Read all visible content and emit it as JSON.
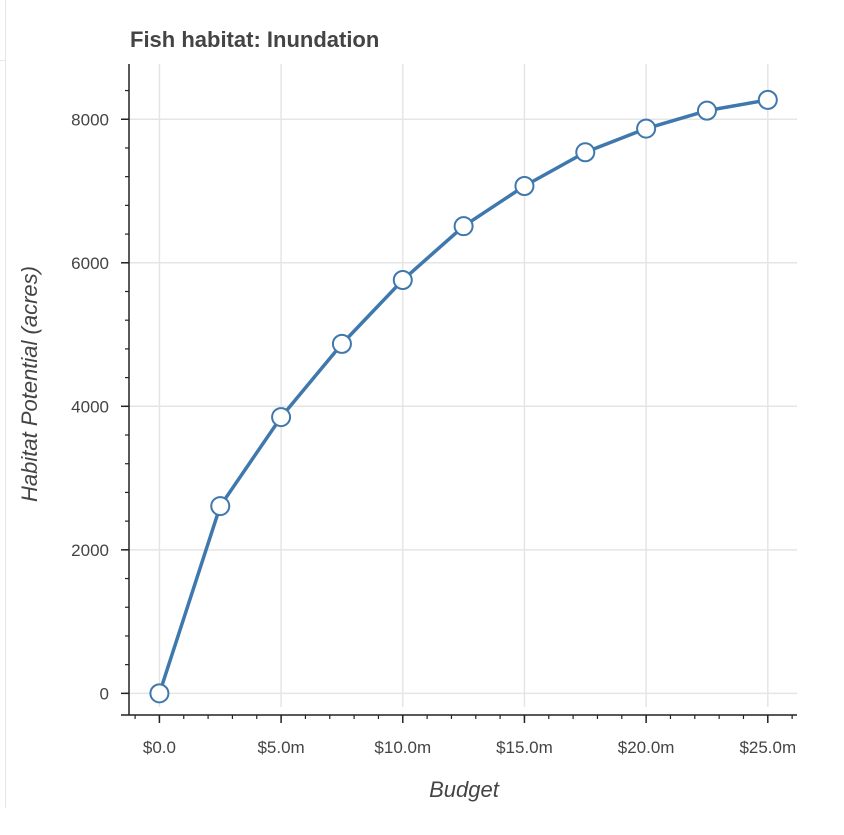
{
  "chart_data": {
    "type": "line",
    "title": "Fish habitat: Inundation",
    "xlabel": "Budget",
    "ylabel": "Habitat Potential (acres)",
    "x": [
      0,
      2.5,
      5,
      7.5,
      10,
      12.5,
      15,
      17.5,
      20,
      22.5,
      25
    ],
    "series": [
      {
        "values": [
          0,
          2610,
          3850,
          4870,
          5760,
          6510,
          7070,
          7540,
          7870,
          8120,
          8270
        ]
      }
    ],
    "xlim": [
      -1.25,
      26.2
    ],
    "ylim": [
      -190,
      8770
    ],
    "x_ticks": [
      0,
      5,
      10,
      15,
      20,
      25
    ],
    "x_tick_labels": [
      "$0.0",
      "$5.0m",
      "$10.0m",
      "$15.0m",
      "$20.0m",
      "$25.0m"
    ],
    "x_minor_step": 1,
    "y_ticks": [
      0,
      2000,
      4000,
      6000,
      8000
    ],
    "y_tick_labels": [
      "0",
      "2000",
      "4000",
      "6000",
      "8000"
    ],
    "y_minor_step": 400,
    "grid": true,
    "legend": "none",
    "colors": {
      "line": "#3f78ad",
      "marker_fill": "#ffffff",
      "grid": "#e5e5e5",
      "axis": "#222222",
      "text": "#444444"
    }
  }
}
